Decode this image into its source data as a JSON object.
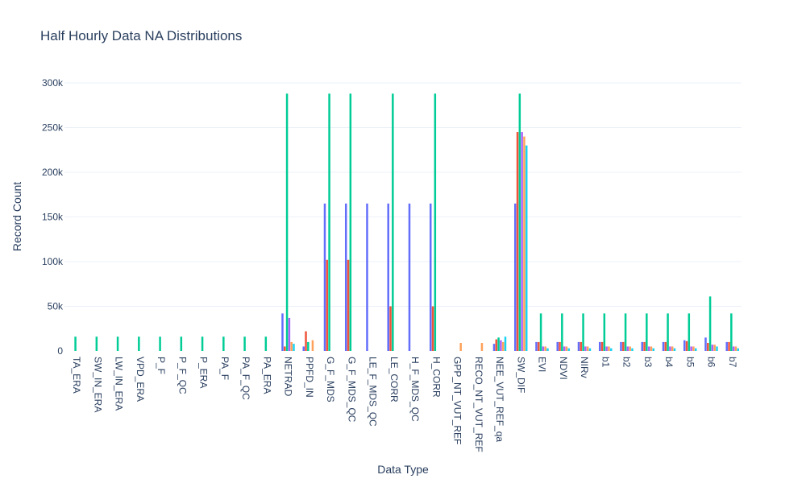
{
  "chart_data": {
    "type": "bar",
    "title": "Half Hourly Data NA Distributions",
    "xlabel": "Data Type",
    "ylabel": "Record Count",
    "ylim": [
      0,
      300000
    ],
    "yticks": [
      {
        "value": 0,
        "label": "0"
      },
      {
        "value": 50000,
        "label": "50k"
      },
      {
        "value": 100000,
        "label": "100k"
      },
      {
        "value": 150000,
        "label": "150k"
      },
      {
        "value": 200000,
        "label": "200k"
      },
      {
        "value": 250000,
        "label": "250k"
      },
      {
        "value": 300000,
        "label": "300k"
      }
    ],
    "grid": true,
    "legend": "none",
    "categories": [
      "TA_ERA",
      "SW_IN_ERA",
      "LW_IN_ERA",
      "VPD_ERA",
      "P_F",
      "P_F_QC",
      "P_ERA",
      "PA_F",
      "PA_F_QC",
      "PA_ERA",
      "NETRAD",
      "PPFD_IN",
      "G_F_MDS",
      "G_F_MDS_QC",
      "LE_F_MDS_QC",
      "LE_CORR",
      "H_F_MDS_QC",
      "H_CORR",
      "GPP_NT_VUT_REF",
      "RECO_NT_VUT_REF",
      "NEE_VUT_REF_qa",
      "SW_DIF",
      "EVI",
      "NDVI",
      "NIRv",
      "b1",
      "b2",
      "b3",
      "b4",
      "b5",
      "b6",
      "b7"
    ],
    "series": [
      {
        "color": "#636efa",
        "values": [
          0,
          0,
          0,
          0,
          0,
          0,
          0,
          0,
          0,
          0,
          42000,
          5000,
          165000,
          165000,
          165000,
          165000,
          165000,
          165000,
          0,
          0,
          8000,
          165000,
          10000,
          10000,
          10000,
          10000,
          10000,
          10000,
          10000,
          12000,
          15000,
          10000
        ]
      },
      {
        "color": "#ef553b",
        "values": [
          0,
          0,
          0,
          0,
          0,
          0,
          0,
          0,
          0,
          0,
          5000,
          22000,
          102000,
          102000,
          0,
          50000,
          0,
          50000,
          0,
          0,
          13000,
          245000,
          10000,
          10000,
          10000,
          10000,
          10000,
          10000,
          10000,
          11000,
          9000,
          10000
        ]
      },
      {
        "color": "#00cc96",
        "values": [
          16000,
          16000,
          16000,
          16000,
          16000,
          16000,
          16000,
          16000,
          16000,
          16000,
          288000,
          10000,
          288000,
          288000,
          0,
          288000,
          0,
          288000,
          0,
          0,
          15000,
          288000,
          42000,
          42000,
          42000,
          42000,
          42000,
          42000,
          42000,
          42000,
          61000,
          42000
        ]
      },
      {
        "color": "#ab63fa",
        "values": [
          0,
          0,
          0,
          0,
          0,
          0,
          0,
          0,
          0,
          0,
          37000,
          0,
          0,
          0,
          0,
          0,
          0,
          0,
          0,
          0,
          12000,
          245000,
          5000,
          5000,
          5000,
          5000,
          5000,
          5000,
          5000,
          5000,
          7000,
          5000
        ]
      },
      {
        "color": "#ffa15a",
        "values": [
          0,
          0,
          0,
          0,
          0,
          0,
          0,
          0,
          0,
          0,
          10000,
          12000,
          0,
          0,
          0,
          0,
          0,
          0,
          9000,
          9000,
          10000,
          240000,
          5000,
          5000,
          5000,
          5000,
          5000,
          5000,
          5000,
          5000,
          7000,
          5000
        ]
      },
      {
        "color": "#19d3f3",
        "values": [
          0,
          0,
          0,
          0,
          0,
          0,
          0,
          0,
          0,
          0,
          8000,
          0,
          0,
          0,
          0,
          0,
          0,
          0,
          0,
          0,
          16000,
          230000,
          3000,
          3000,
          3000,
          3000,
          3000,
          3000,
          3000,
          3000,
          5000,
          3000
        ]
      }
    ]
  }
}
